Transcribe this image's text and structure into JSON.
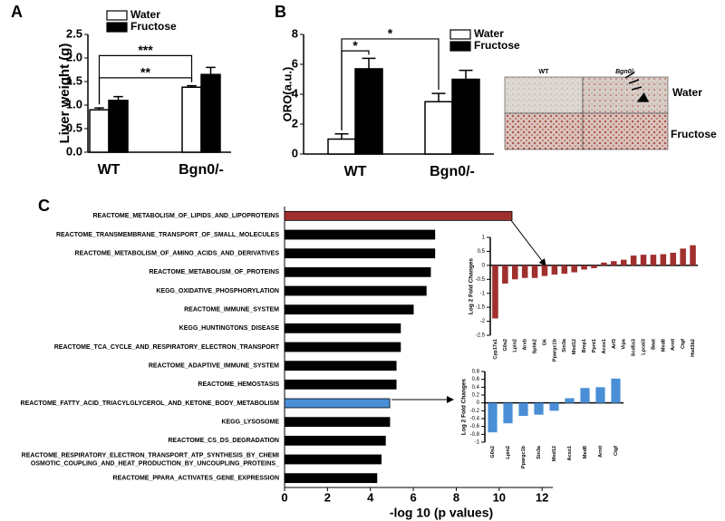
{
  "chart_data": [
    {
      "type": "bar",
      "panel": "A",
      "ylabel": "Liver weight (g)",
      "categories": [
        "WT",
        "Bgn0/-"
      ],
      "series": [
        {
          "name": "Water",
          "color": "#ffffff",
          "values": [
            0.9,
            1.38
          ],
          "errors": [
            0.04,
            0.03
          ]
        },
        {
          "name": "Fructose",
          "color": "#000000",
          "values": [
            1.1,
            1.65
          ],
          "errors": [
            0.08,
            0.15
          ]
        }
      ],
      "ylim": [
        0,
        2.5
      ],
      "yticks": [
        {
          "value": 0,
          "label": "0.0"
        },
        0.5,
        {
          "value": 1,
          "label": "1.0"
        },
        1.5,
        {
          "value": 2,
          "label": "2.0"
        },
        2.5
      ],
      "annotations": [
        "**",
        "***"
      ]
    },
    {
      "type": "bar",
      "panel": "B",
      "ylabel": "ORO(a.u.)",
      "categories": [
        "WT",
        "Bgn0/-"
      ],
      "series": [
        {
          "name": "Water",
          "color": "#ffffff",
          "values": [
            1.0,
            3.5
          ],
          "errors": [
            0.35,
            0.55
          ]
        },
        {
          "name": "Fructose",
          "color": "#000000",
          "values": [
            5.7,
            5.0
          ],
          "errors": [
            0.7,
            0.6
          ]
        }
      ],
      "ylim": [
        0,
        8
      ],
      "yticks": [
        0,
        2,
        4,
        6,
        8
      ],
      "annotations": [
        "*",
        "*"
      ],
      "image_labels": {
        "columns": [
          "WT",
          "Bgn0/-"
        ],
        "rows": [
          "Water",
          "Fructose"
        ]
      }
    },
    {
      "type": "barh",
      "panel": "C",
      "xlabel": "-log 10 (p values)",
      "categories": [
        "REACTOME_METABOLISM_OF_LIPIDS_AND_LIPOPROTEINS",
        "REACTOME_TRANSMEMBRANE_TRANSPORT_OF_SMALL_MOLECULES",
        "REACTOME_METABOLISM_OF_AMINO_ACIDS_AND_DERIVATIVES",
        "REACTOME_METABOLISM_OF_PROTEINS",
        "KEGG_OXIDATIVE_PHOSPHORYLATION",
        "REACTOME_IMMUNE_SYSTEM",
        "KEGG_HUNTINGTONS_DISEASE",
        "REACTOME_TCA_CYCLE_AND_RESPIRATORY_ELECTRON_TRANSPORT",
        "REACTOME_ADAPTIVE_IMMUNE_SYSTEM",
        "REACTOME_HEMOSTASIS",
        "REACTOME_FATTY_ACID_TRIACYLGLYCEROL_AND_KETONE_BODY_METABOLISM",
        "KEGG_LYSOSOME",
        "REACTOME_CS_DS_DEGRADATION",
        "REACTOME_RESPIRATORY_ELECTRON_TRANSPORT_ATP_SYNTHESIS_BY_CHEMI OSMOTIC_COUPLING_AND_HEAT_PRODUCTION_BY_UNCOUPLING_PROTEINS_",
        "REACTOME_PPARA_ACTIVATES_GENE_EXPRESSION"
      ],
      "values": [
        10.6,
        7.0,
        7.0,
        6.8,
        6.6,
        6.0,
        5.4,
        5.4,
        5.2,
        5.2,
        4.9,
        4.9,
        4.7,
        4.5,
        4.3
      ],
      "colors": [
        "#a0302e",
        "#000000",
        "#000000",
        "#000000",
        "#000000",
        "#000000",
        "#000000",
        "#000000",
        "#000000",
        "#000000",
        "#4a8fd6",
        "#000000",
        "#000000",
        "#000000",
        "#000000"
      ],
      "xlim": [
        0,
        12.5
      ],
      "xticks": [
        0,
        2,
        4,
        6,
        8,
        10,
        12
      ]
    },
    {
      "type": "bar",
      "ylabel": "Log 2 Fold Changes",
      "categories": [
        "Cyp17a1",
        "G0s2",
        "Lpin2",
        "Arxb",
        "Sphk2",
        "Gk",
        "Ppargc1b",
        "Sin3a",
        "Med12",
        "Bmp1",
        "Ppnt1",
        "Acox1",
        "Arf3",
        "Vipa",
        "Scd5s3",
        "Lpcat3",
        "Baat",
        "Med8",
        "Arntl",
        "Ctgf",
        "Hsd3b2"
      ],
      "values": [
        -1.9,
        -0.65,
        -0.5,
        -0.45,
        -0.45,
        -0.38,
        -0.33,
        -0.3,
        -0.25,
        -0.15,
        -0.1,
        0.1,
        0.15,
        0.2,
        0.35,
        0.38,
        0.38,
        0.4,
        0.45,
        0.6,
        0.72
      ],
      "color": "#a0302e",
      "ylim": [
        -2.5,
        1
      ],
      "yticks": [
        -2.5,
        -2,
        -1.5,
        -1,
        -0.5,
        0,
        0.5,
        1
      ]
    },
    {
      "type": "bar",
      "ylabel": "Log 2 Fold Changes",
      "categories": [
        "G0s2",
        "Lpin2",
        "Ppargc1b",
        "Sin3a",
        "Med12",
        "Acox1",
        "Med8",
        "Arntl",
        "Ctgf"
      ],
      "values": [
        -0.75,
        -0.52,
        -0.33,
        -0.3,
        -0.2,
        0.12,
        0.38,
        0.4,
        0.62
      ],
      "color": "#4a8fd6",
      "ylim": [
        -1,
        0.8
      ],
      "yticks": [
        -1,
        -0.8,
        -0.6,
        -0.4,
        -0.2,
        0,
        0.2,
        0.4,
        0.6,
        0.8
      ]
    }
  ]
}
